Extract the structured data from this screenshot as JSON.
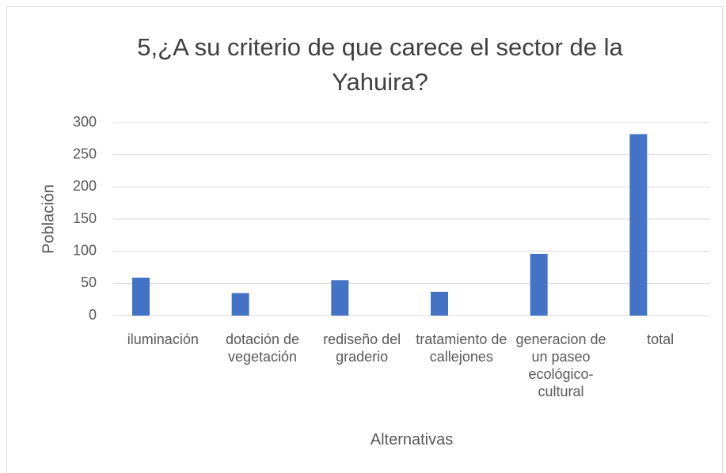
{
  "chart_data": {
    "type": "bar",
    "title": "5,¿A su criterio de que carece el sector de la Yahuira?",
    "x_label": "Alternativas",
    "y_label": "Población",
    "categories": [
      "iluminación",
      "dotación de vegetación",
      "rediseño del graderio",
      "tratamiento de callejones",
      "generacion de un paseo ecológico-cultural",
      "total"
    ],
    "values": [
      59,
      35,
      55,
      37,
      96,
      282
    ],
    "color": "#4472c4",
    "ylim": [
      0,
      300
    ],
    "yticks": [
      0,
      50,
      100,
      150,
      200,
      250,
      300
    ],
    "grid": true
  }
}
